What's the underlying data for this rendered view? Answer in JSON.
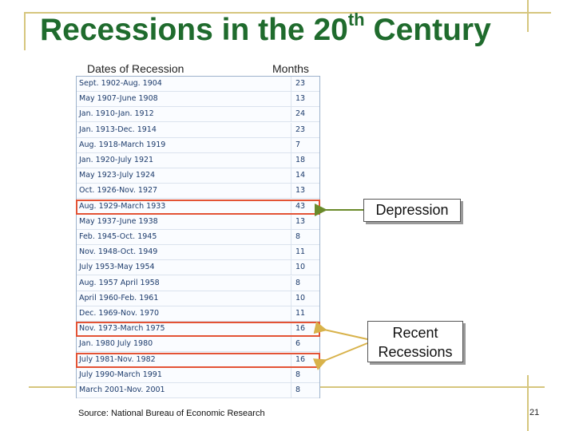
{
  "title": {
    "main": "Recessions in the 20",
    "sup": "th",
    "end": " Century"
  },
  "columns": {
    "dates": "Dates of Recession",
    "months": "Months"
  },
  "rows": [
    {
      "dates": "Sept. 1902-Aug. 1904",
      "months": "23"
    },
    {
      "dates": "May 1907-June 1908",
      "months": "13"
    },
    {
      "dates": "Jan. 1910-Jan. 1912",
      "months": "24"
    },
    {
      "dates": "Jan. 1913-Dec. 1914",
      "months": "23"
    },
    {
      "dates": "Aug. 1918-March 1919",
      "months": "7"
    },
    {
      "dates": "Jan. 1920-July 1921",
      "months": "18"
    },
    {
      "dates": "May 1923-July 1924",
      "months": "14"
    },
    {
      "dates": "Oct. 1926-Nov. 1927",
      "months": "13"
    },
    {
      "dates": "Aug. 1929-March 1933",
      "months": "43"
    },
    {
      "dates": "May 1937-June 1938",
      "months": "13"
    },
    {
      "dates": "Feb. 1945-Oct. 1945",
      "months": "8"
    },
    {
      "dates": "Nov. 1948-Oct. 1949",
      "months": "11"
    },
    {
      "dates": "July 1953-May 1954",
      "months": "10"
    },
    {
      "dates": "Aug. 1957 April 1958",
      "months": "8"
    },
    {
      "dates": "April 1960-Feb. 1961",
      "months": "10"
    },
    {
      "dates": "Dec. 1969-Nov. 1970",
      "months": "11"
    },
    {
      "dates": "Nov. 1973-March 1975",
      "months": "16"
    },
    {
      "dates": "Jan. 1980 July 1980",
      "months": "6"
    },
    {
      "dates": "July 1981-Nov. 1982",
      "months": "16"
    },
    {
      "dates": "July 1990-March 1991",
      "months": "8"
    },
    {
      "dates": "March 2001-Nov. 2001",
      "months": "8"
    }
  ],
  "callouts": {
    "depression": "Depression",
    "recent_line1": "Recent",
    "recent_line2": "Recessions"
  },
  "source": "Source: National Bureau of Economic Research",
  "page_number": "21",
  "colors": {
    "title": "#1f6b2d",
    "highlight": "#e35335",
    "arrow_green": "#6a8a2a",
    "arrow_gold": "#d8b24a",
    "deco": "#d6c67e"
  }
}
